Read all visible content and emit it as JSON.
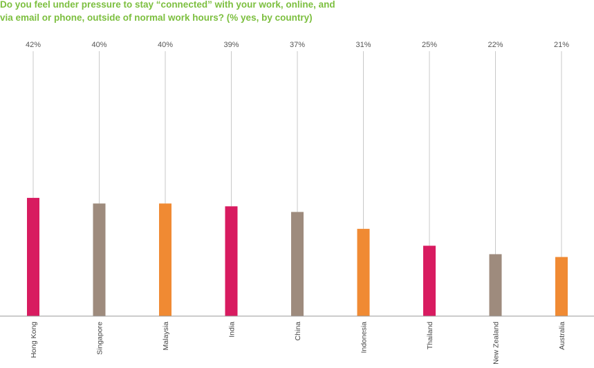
{
  "chart_data": {
    "type": "bar",
    "title_lines": [
      "Do you feel under pressure to stay “connected” with your work, online, and",
      "via email or phone, outside of normal work hours? (% yes, by country)"
    ],
    "categories": [
      "Hong Kong",
      "Singapore",
      "Malaysia",
      "India",
      "China",
      "Indonesia",
      "Thailand",
      "New Zealand",
      "Australia"
    ],
    "values": [
      42,
      40,
      40,
      39,
      37,
      31,
      25,
      22,
      21
    ],
    "value_labels": [
      "42%",
      "40%",
      "40%",
      "39%",
      "37%",
      "31%",
      "25%",
      "22%",
      "21%"
    ],
    "bar_colors": [
      "#d81b60",
      "#9e8b7d",
      "#f08a33",
      "#d81b60",
      "#9e8b7d",
      "#f08a33",
      "#d81b60",
      "#9e8b7d",
      "#f08a33"
    ],
    "ylim": [
      0,
      100
    ],
    "grid": false,
    "colors": {
      "title": "#7cbf3f",
      "leader_line": "#c8c8c8",
      "baseline": "#999999"
    }
  }
}
